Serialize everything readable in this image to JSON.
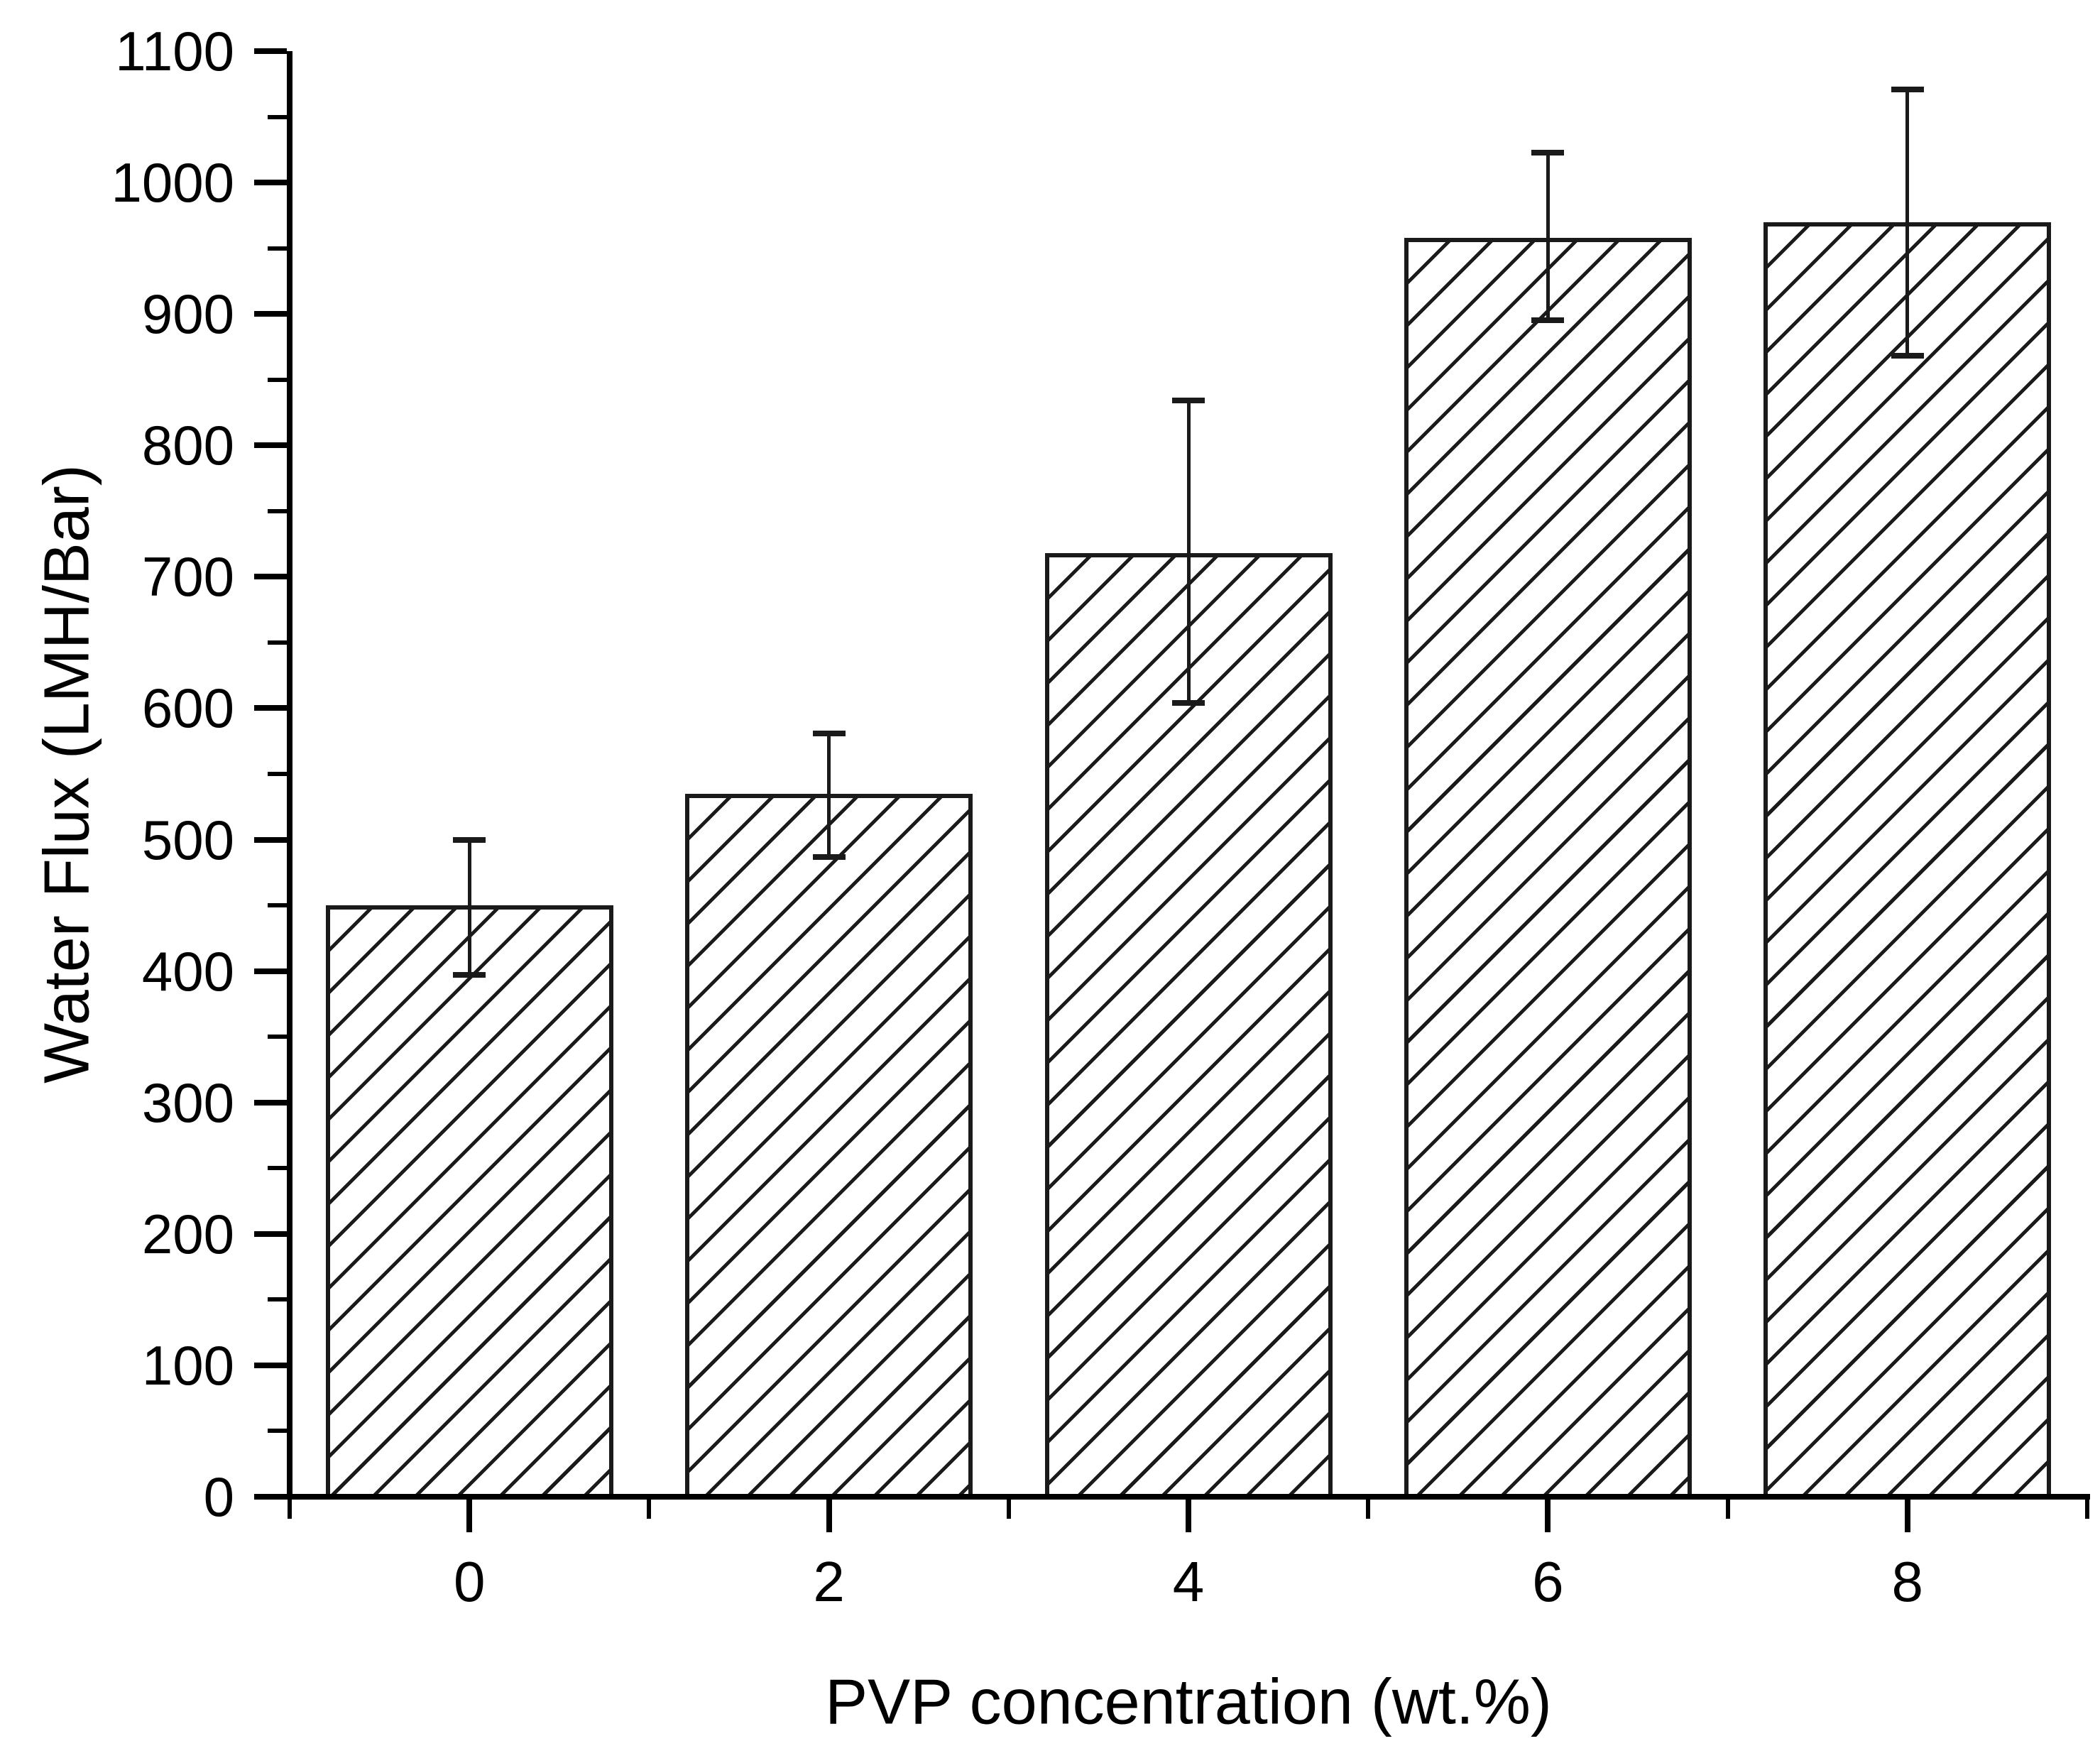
{
  "chart_data": {
    "type": "bar",
    "title": "",
    "xlabel": "PVP concentration (wt.%)",
    "ylabel": "Water Flux (LMH/Bar)",
    "categories": [
      0,
      2,
      4,
      6,
      8
    ],
    "values": [
      450,
      535,
      718,
      958,
      970
    ],
    "error_plus": [
      50,
      46,
      116,
      65,
      101
    ],
    "error_minus": [
      53,
      48,
      114,
      63,
      102
    ],
    "xlim": [
      -1,
      9
    ],
    "ylim": [
      0,
      1100
    ],
    "y_major_step": 100,
    "y_minor_step": 50,
    "x_minor_positions": [
      -1,
      1,
      3,
      5,
      7,
      9
    ],
    "ytick_labels": [
      "0",
      "100",
      "200",
      "300",
      "400",
      "500",
      "600",
      "700",
      "800",
      "900",
      "1000",
      "1100"
    ],
    "xtick_labels": [
      "0",
      "2",
      "4",
      "6",
      "8"
    ],
    "bar_fill": "hatched-diagonal-forward",
    "bar_edge_color": "#1a1a1a",
    "background": "#ffffff",
    "grid": false,
    "legend": null,
    "error_bar_style": "caps-both-ends"
  }
}
